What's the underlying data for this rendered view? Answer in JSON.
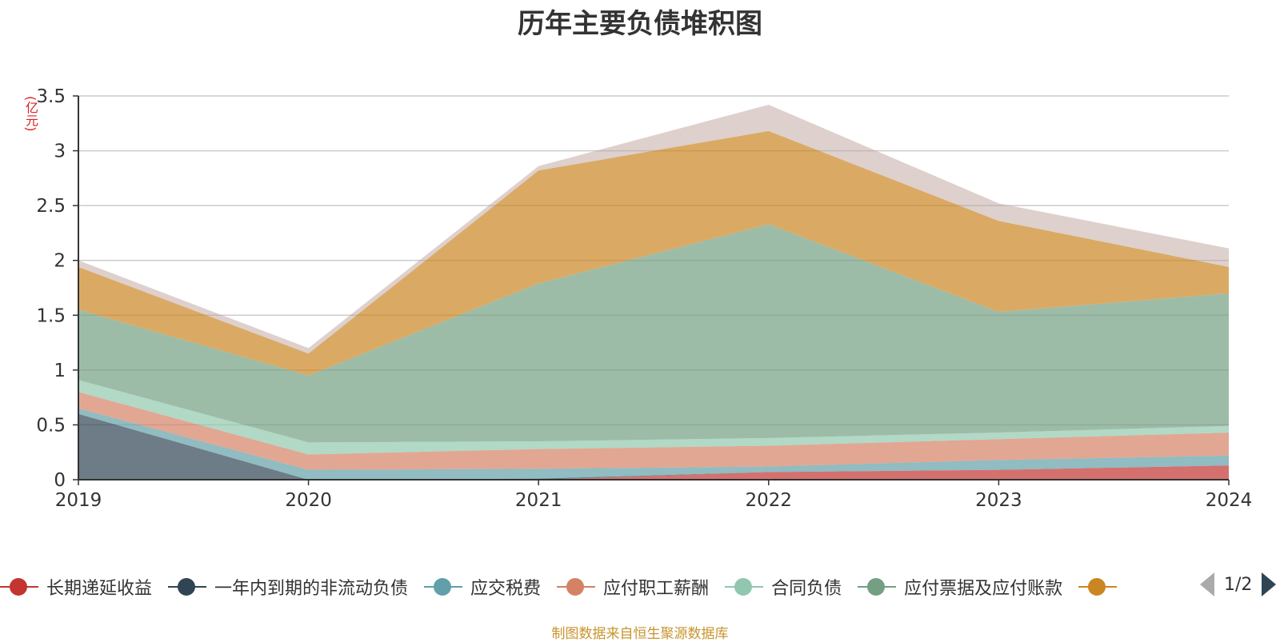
{
  "chart_data": {
    "type": "area",
    "stacked": true,
    "title": "历年主要负债堆积图",
    "ylabel": "(亿元)",
    "categories": [
      "2019",
      "2020",
      "2021",
      "2022",
      "2023",
      "2024"
    ],
    "ylim": [
      0,
      3.5
    ],
    "yticks": [
      "0",
      "0.5",
      "1",
      "1.5",
      "2",
      "2.5",
      "3",
      "3.5"
    ],
    "grid": true,
    "legend_position": "bottom",
    "series": [
      {
        "name": "长期递延收益",
        "color": "#c23531",
        "values": [
          0,
          0,
          0,
          0.07,
          0.09,
          0.13
        ]
      },
      {
        "name": "一年内到期的非流动负债",
        "color": "#2f4554",
        "values": [
          0.6,
          0,
          0.01,
          0,
          0,
          0
        ]
      },
      {
        "name": "应交税费",
        "color": "#61a0a8",
        "values": [
          0.05,
          0.09,
          0.09,
          0.05,
          0.09,
          0.09
        ]
      },
      {
        "name": "应付职工薪酬",
        "color": "#d48265",
        "values": [
          0.15,
          0.14,
          0.18,
          0.19,
          0.19,
          0.21
        ]
      },
      {
        "name": "合同负债",
        "color": "#91c7ae",
        "values": [
          0.11,
          0.11,
          0.07,
          0.07,
          0.06,
          0.06
        ]
      },
      {
        "name": "应付票据及应付账款",
        "color": "#749f83",
        "values": [
          0.64,
          0.61,
          1.44,
          1.95,
          1.1,
          1.21
        ]
      },
      {
        "name": "",
        "color": "#ca8622",
        "values": [
          0.39,
          0.2,
          1.03,
          0.85,
          0.83,
          0.24
        ]
      },
      {
        "name": "",
        "color": "#bda29a",
        "values": [
          0.06,
          0.05,
          0.04,
          0.24,
          0.16,
          0.17
        ]
      }
    ]
  },
  "legend": {
    "visible_count": 7,
    "page_text": "1/2"
  },
  "footer": {
    "note": "制图数据来自恒生聚源数据库"
  }
}
